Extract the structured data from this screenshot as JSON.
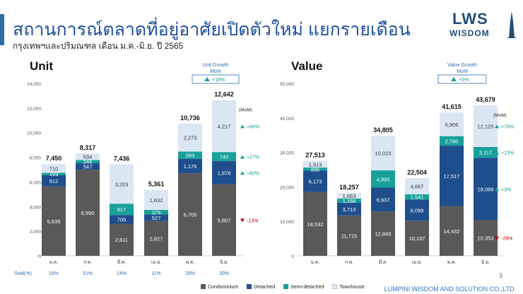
{
  "header": {
    "title": "สถานการณ์ตลาดที่อยู่อาศัยเปิดตัวใหม่ แยกรายเดือน",
    "subtitle": "กรุงเทพฯและปริมณฑล เดือน ม.ค.-มิ.ย. ปี 2565"
  },
  "logo": {
    "line1": "LWS",
    "line2": "WISDOM"
  },
  "footer": "LUMPINI WISDOM AND SOLUTION CO.,LTD.",
  "page_number": "3",
  "sold_label": "Sold(%)",
  "sold": [
    "18%",
    "51%",
    "14%",
    "11%",
    "28%",
    "20%"
  ],
  "mom_label": "(MoM)",
  "colors": {
    "Condominium": "#595959",
    "Detached": "#1f4e8c",
    "Semi-detached": "#18a09a",
    "Townhouse": "#dbe6f3"
  },
  "legend": [
    "Condominium",
    "Detached",
    "Semi-detached",
    "Townhouse"
  ],
  "chart_data": [
    {
      "type": "bar",
      "stacked": true,
      "title": "Unit",
      "categories": [
        "ม.ค.",
        "ก.พ.",
        "มี.ค.",
        "เม.ย.",
        "พ.ค.",
        "มิ.ย."
      ],
      "series": [
        {
          "name": "Condominium",
          "values": [
            5635,
            6990,
            2611,
            2827,
            6705,
            5807
          ]
        },
        {
          "name": "Detached",
          "values": [
            912,
            547,
            705,
            527,
            1175,
            1878
          ]
        },
        {
          "name": "Semi-detached",
          "values": [
            193,
            246,
            917,
            375,
            583,
            740
          ]
        },
        {
          "name": "Townhouse",
          "values": [
            710,
            534,
            3203,
            1632,
            2273,
            4217
          ]
        }
      ],
      "totals": [
        7450,
        8317,
        7436,
        5361,
        10736,
        12642
      ],
      "ylim": [
        0,
        14000
      ],
      "yticks": [
        "0",
        "2,000",
        "4,000",
        "6,000",
        "8,000",
        "10,000",
        "12,000",
        "14,000"
      ],
      "growth_box": {
        "title": "Unit Growth",
        "sub": "MoM",
        "value": "+18%"
      },
      "mom": [
        {
          "series": "Townhouse",
          "value": "+86%",
          "dir": "up"
        },
        {
          "series": "Semi-detached",
          "value": "+27%",
          "dir": "up"
        },
        {
          "series": "Detached",
          "value": "+60%",
          "dir": "up"
        },
        {
          "series": "Condominium",
          "value": "-13%",
          "dir": "down"
        }
      ]
    },
    {
      "type": "bar",
      "stacked": true,
      "title": "Value",
      "categories": [
        "ม.ค.",
        "ก.พ.",
        "มี.ค.",
        "เม.ย.",
        "พ.ค.",
        "มิ.ย."
      ],
      "series": [
        {
          "name": "Condominium",
          "values": [
            18532,
            11715,
            12849,
            10197,
            14432,
            10353
          ]
        },
        {
          "name": "Detached",
          "values": [
            6173,
            3713,
            6937,
            6099,
            17517,
            18089
          ]
        },
        {
          "name": "Semi-detached",
          "values": [
            896,
            1166,
            4995,
            1541,
            2760,
            3117
          ]
        },
        {
          "name": "Townhouse",
          "values": [
            1913,
            1663,
            10023,
            4667,
            6906,
            12120
          ]
        }
      ],
      "totals": [
        27513,
        18257,
        34805,
        22504,
        41615,
        43679
      ],
      "ylim": [
        0,
        50000
      ],
      "yticks": [
        "0",
        "10,000",
        "20,000",
        "30,000",
        "40,000",
        "50,000"
      ],
      "growth_box": {
        "title": "Value Growth",
        "sub": "MoM",
        "value": "+5%"
      },
      "mom": [
        {
          "series": "Townhouse",
          "value": "+76%",
          "dir": "up"
        },
        {
          "series": "Semi-detached",
          "value": "+13%",
          "dir": "up"
        },
        {
          "series": "Detached",
          "value": "+3%",
          "dir": "up"
        },
        {
          "series": "Condominium",
          "value": "-28%",
          "dir": "down"
        }
      ]
    }
  ]
}
